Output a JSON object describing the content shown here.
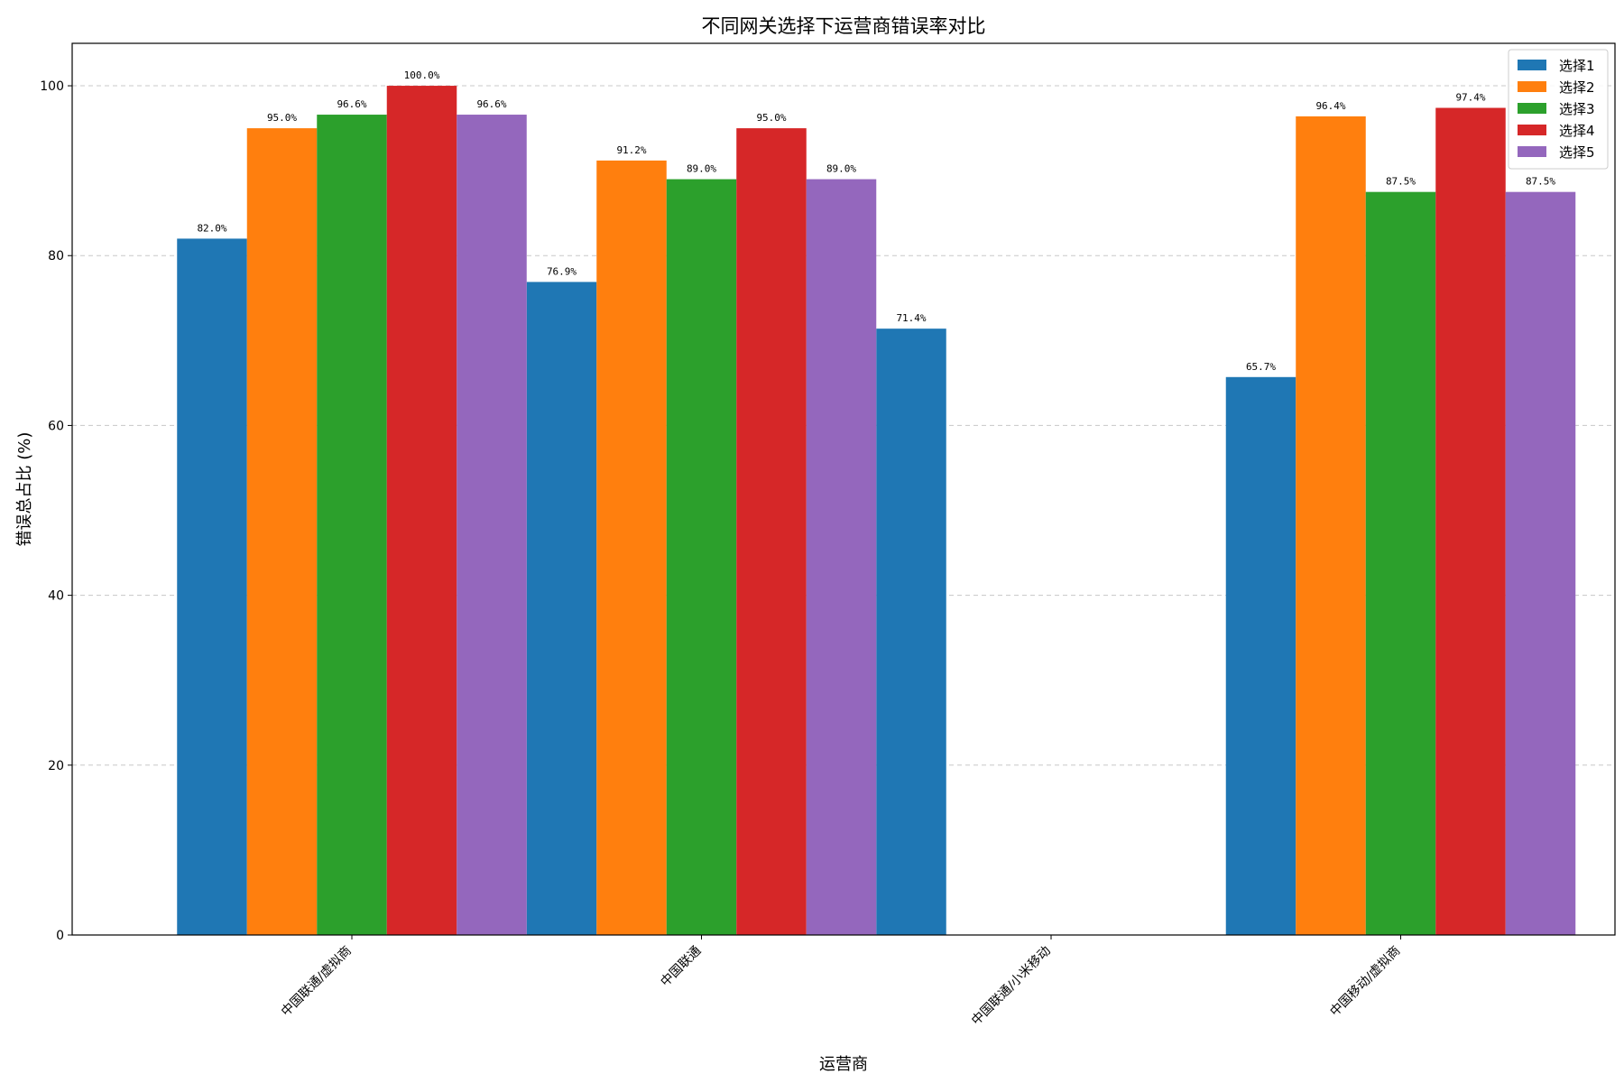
{
  "chart_data": {
    "type": "bar",
    "title": "不同网关选择下运营商错误率对比",
    "xlabel": "运营商",
    "ylabel": "错误总占比 (%)",
    "ylim": [
      0,
      105
    ],
    "yticks": [
      0,
      20,
      40,
      60,
      80,
      100
    ],
    "grid": "y-dashed",
    "legend_position": "top-right",
    "categories": [
      "中国联通/虚拟商",
      "中国联通",
      "中国联通/小米移动",
      "中国移动/虚拟商"
    ],
    "series": [
      {
        "name": "选择1",
        "color": "#1f77b4",
        "values": [
          82.0,
          76.9,
          71.4,
          65.7
        ],
        "labels": [
          "82.0%",
          "76.9%",
          "71.4%",
          "65.7%"
        ]
      },
      {
        "name": "选择2",
        "color": "#ff7f0e",
        "values": [
          95.0,
          91.2,
          null,
          96.4
        ],
        "labels": [
          "95.0%",
          "91.2%",
          null,
          "96.4%"
        ]
      },
      {
        "name": "选择3",
        "color": "#2ca02c",
        "values": [
          96.6,
          89.0,
          null,
          87.5
        ],
        "labels": [
          "96.6%",
          "89.0%",
          null,
          "87.5%"
        ]
      },
      {
        "name": "选择4",
        "color": "#d62728",
        "values": [
          100.0,
          95.0,
          null,
          97.4
        ],
        "labels": [
          "100.0%",
          "95.0%",
          null,
          "97.4%"
        ]
      },
      {
        "name": "选择5",
        "color": "#9467bd",
        "values": [
          96.6,
          89.0,
          null,
          87.5
        ],
        "labels": [
          "96.6%",
          "89.0%",
          null,
          "87.5%"
        ]
      }
    ]
  }
}
